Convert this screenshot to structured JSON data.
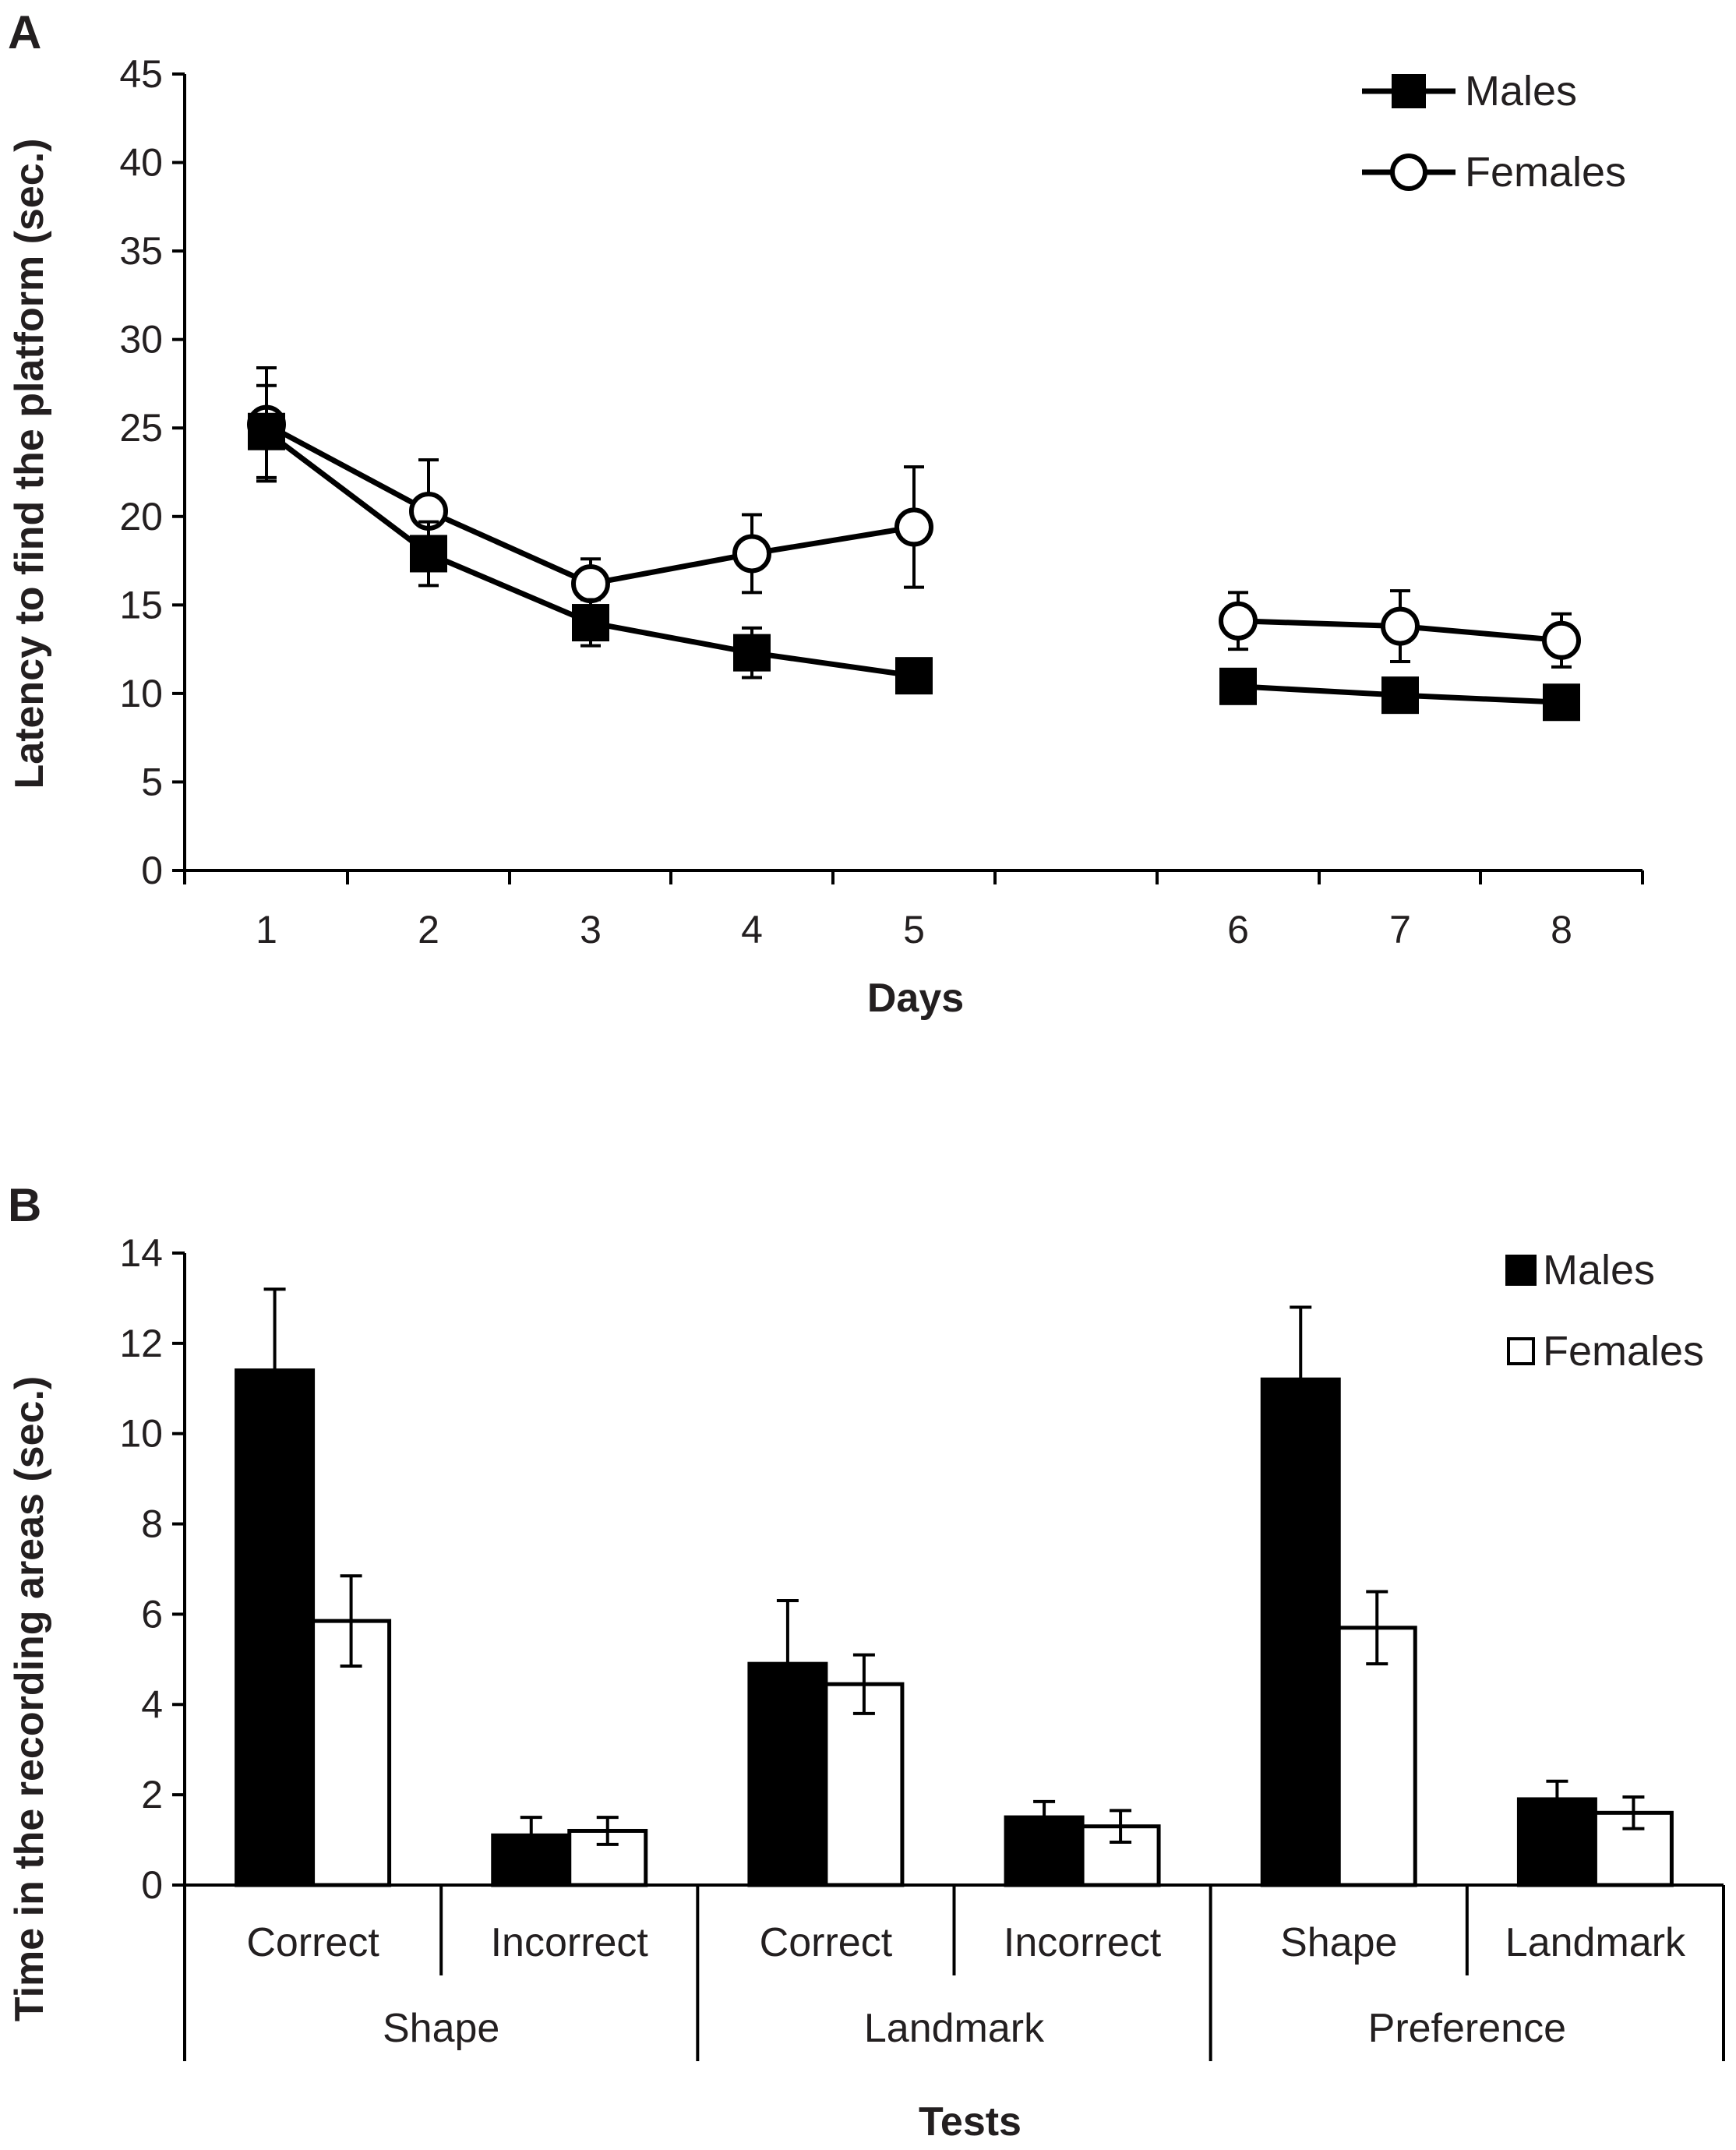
{
  "colors": {
    "ink": "#000000",
    "text": "#231f20",
    "background": "#ffffff"
  },
  "chart_data": [
    {
      "panel": "A",
      "type": "line",
      "xlabel": "Days",
      "ylabel": "Latency to find the platform (sec.)",
      "ylim": [
        0,
        45
      ],
      "yticks": [
        0,
        5,
        10,
        15,
        20,
        25,
        30,
        35,
        40,
        45
      ],
      "x": [
        1,
        2,
        3,
        4,
        5,
        6,
        7,
        8
      ],
      "legend_position": "top-right",
      "grid": false,
      "series": [
        {
          "name": "Males",
          "marker": "filled-square",
          "segments": [
            {
              "x": [
                1,
                2,
                3,
                4,
                5
              ],
              "y": [
                24.8,
                17.9,
                14.0,
                12.3,
                11.0
              ],
              "err": [
                2.6,
                1.8,
                1.3,
                1.4,
                0.6
              ]
            },
            {
              "x": [
                6,
                7,
                8
              ],
              "y": [
                10.4,
                9.9,
                9.5
              ],
              "err": [
                0.5,
                0.5,
                0.5
              ]
            }
          ]
        },
        {
          "name": "Females",
          "marker": "open-circle",
          "segments": [
            {
              "x": [
                1,
                2,
                3,
                4,
                5
              ],
              "y": [
                25.2,
                20.3,
                16.2,
                17.9,
                19.4
              ],
              "err": [
                3.2,
                2.9,
                1.4,
                2.2,
                3.4
              ]
            },
            {
              "x": [
                6,
                7,
                8
              ],
              "y": [
                14.1,
                13.8,
                13.0
              ],
              "err": [
                1.6,
                2.0,
                1.5
              ]
            }
          ]
        }
      ]
    },
    {
      "panel": "B",
      "type": "bar",
      "xlabel": "Tests",
      "ylabel": "Time in the recording areas (sec.)",
      "ylim": [
        0,
        14
      ],
      "yticks": [
        0,
        2,
        4,
        6,
        8,
        10,
        12,
        14
      ],
      "categories": [
        "Correct",
        "Incorrect",
        "Correct",
        "Incorrect",
        "Shape",
        "Landmark"
      ],
      "groups": [
        "Shape",
        "Landmark",
        "Preference"
      ],
      "legend_position": "top-right",
      "grid": false,
      "series": [
        {
          "name": "Males",
          "fill": "#000000",
          "values": [
            11.4,
            1.1,
            4.9,
            1.5,
            11.2,
            1.9
          ],
          "err": [
            1.8,
            0.4,
            1.4,
            0.35,
            1.6,
            0.4
          ]
        },
        {
          "name": "Females",
          "fill": "#ffffff",
          "values": [
            5.85,
            1.2,
            4.45,
            1.3,
            5.7,
            1.6
          ],
          "err": [
            1.0,
            0.3,
            0.65,
            0.35,
            0.8,
            0.35
          ]
        }
      ]
    }
  ]
}
